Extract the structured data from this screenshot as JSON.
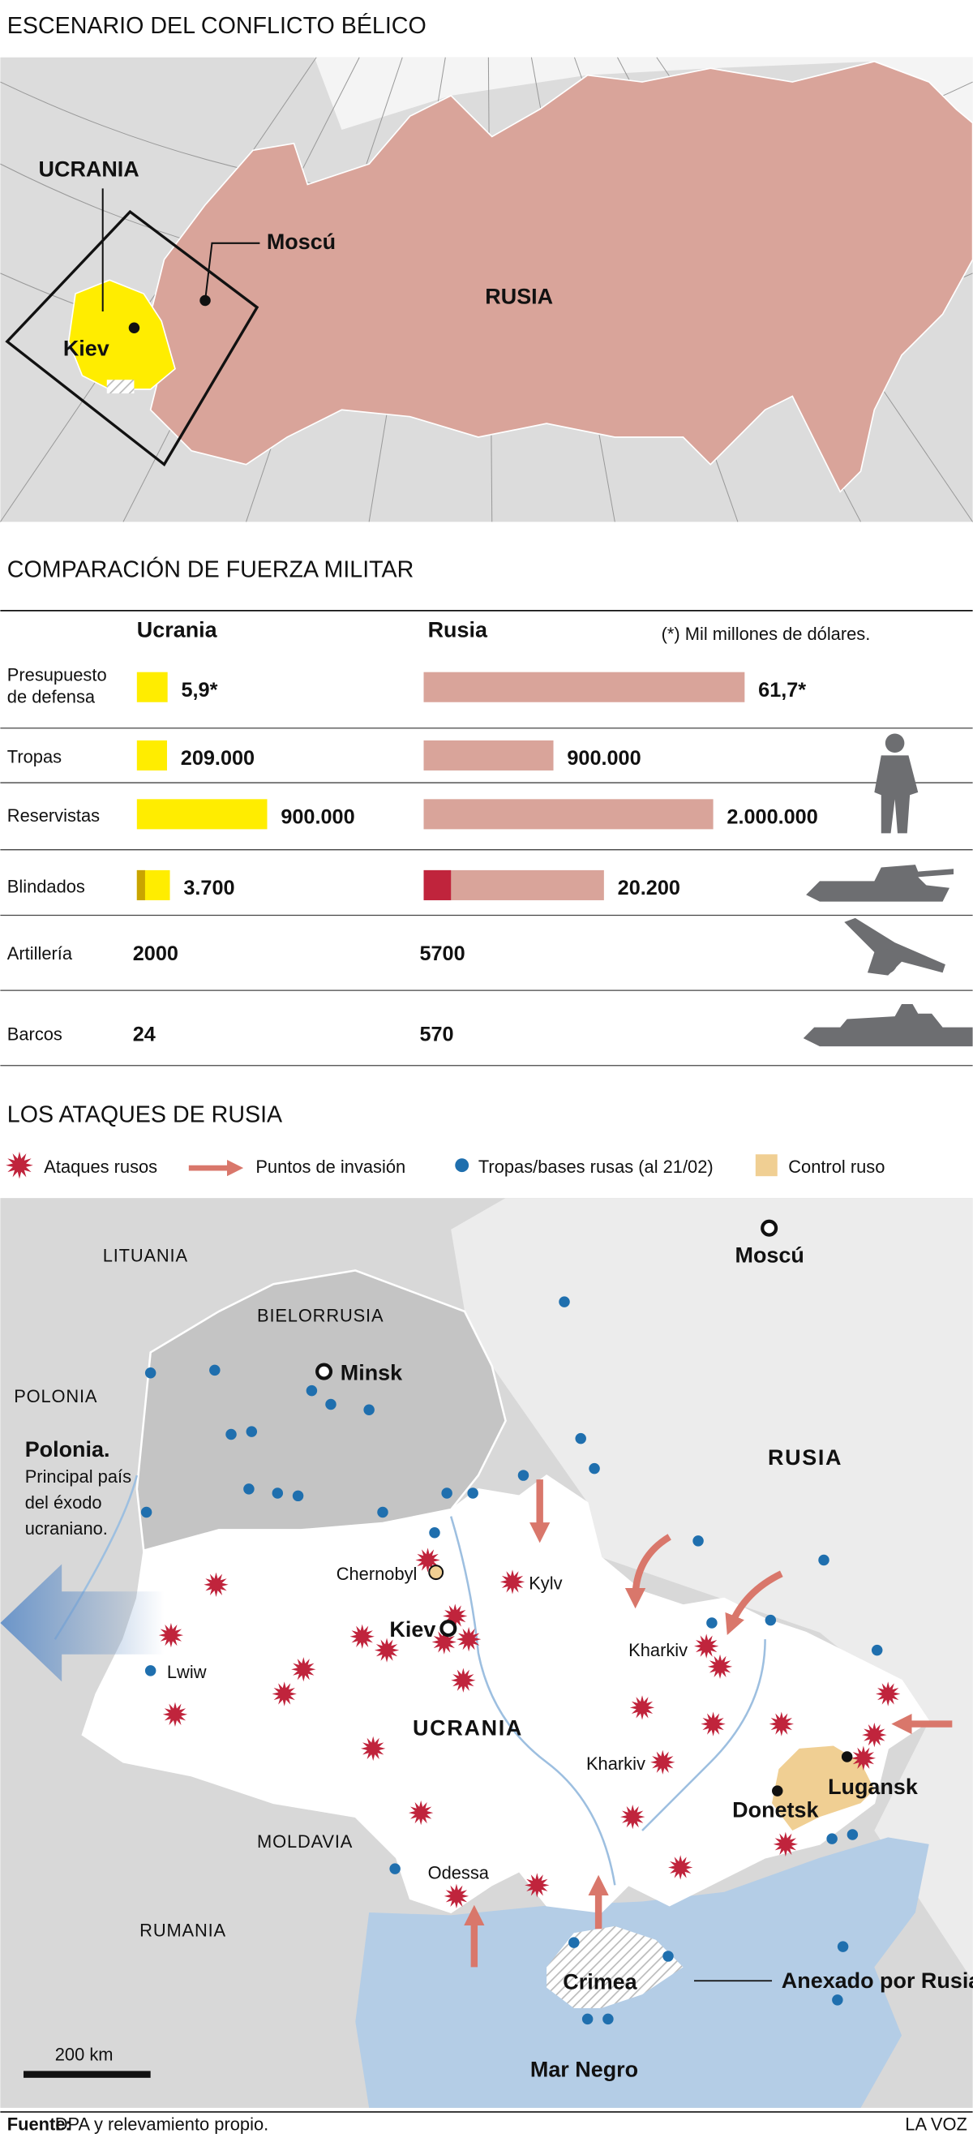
{
  "overview_map": {
    "title": "ESCENARIO DEL CONFLICTO BÉLICO",
    "labels": {
      "ukraine": "UCRANIA",
      "moscow": "Moscú",
      "russia": "RUSIA",
      "kiev": "Kiev"
    }
  },
  "comparison": {
    "title": "COMPARACIÓN DE FUERZA MILITAR",
    "columns": [
      "Ucrania",
      "Rusia"
    ],
    "note": "(*) Mil millones de dólares.",
    "colors": [
      "#ffed00",
      "#d9a49a"
    ],
    "rows": [
      {
        "label": [
          "Presupuesto",
          "de defensa"
        ],
        "values": [
          5.9,
          61.7
        ],
        "value_labels": [
          "5,9*",
          "61,7*"
        ],
        "bars": true
      },
      {
        "label": "Tropas",
        "values": [
          209000,
          900000
        ],
        "value_labels": [
          "209.000",
          "900.000"
        ],
        "bars": true
      },
      {
        "label": "Reservistas",
        "values": [
          900000,
          2000000
        ],
        "value_labels": [
          "900.000",
          "2.000.000"
        ],
        "bars": true
      },
      {
        "label": "Blindados",
        "values": [
          3700,
          20200
        ],
        "value_labels": [
          "3.700",
          "20.200"
        ],
        "bars": true
      },
      {
        "label": "Artillería",
        "values": [
          2000,
          5700
        ],
        "bars": false
      },
      {
        "label": "Barcos",
        "values": [
          24,
          570
        ],
        "bars": false
      }
    ]
  },
  "attacks_map": {
    "title": "LOS ATAQUES DE RUSIA",
    "legend": [
      "Ataques rusos",
      "Puntos de invasión",
      "Tropas/bases rusas (al 21/02)",
      "Control ruso"
    ],
    "countries": [
      "LITUANIA",
      "BIELORRUSIA",
      "POLONIA",
      "RUSIA",
      "UCRANIA",
      "MOLDAVIA",
      "RUMANIA"
    ],
    "cities": [
      "Moscú",
      "Minsk",
      "Chernobyl",
      "Kylv",
      "Kiev",
      "Lwiw",
      "Kharkiv",
      "Kharkiv",
      "Odessa",
      "Donetsk",
      "Lugansk",
      "Crimea"
    ],
    "annotation": {
      "title": "Polonia.",
      "lines": [
        "Principal país",
        "del éxodo",
        "ucraniano."
      ]
    },
    "annexed": "Anexado por Rusia",
    "sea": "Mar Negro",
    "scale": "200 km"
  },
  "footer": {
    "source_label": "Fuente:",
    "source": "DPA y relevamiento propio.",
    "credit": "LA VOZ"
  }
}
